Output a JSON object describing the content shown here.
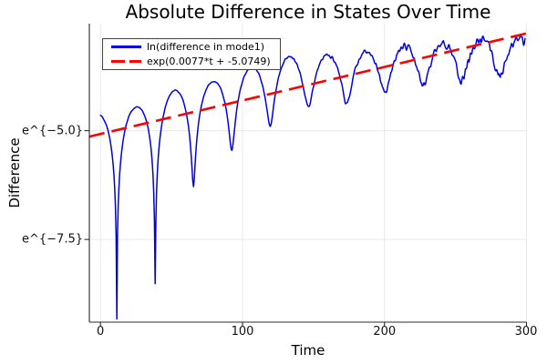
{
  "chart_data": {
    "type": "line",
    "title": "Absolute Difference in States Over Time",
    "xlabel": "Time",
    "ylabel": "Difference",
    "y_scale": "ln",
    "grid": true,
    "legend_position": "top-left",
    "xlim": [
      -7.85,
      300.0
    ],
    "ylim_ln": [
      -9.4,
      -2.54
    ],
    "xticks": {
      "values": [
        0,
        100,
        200,
        300
      ],
      "labels": [
        "0",
        "100",
        "200",
        "300"
      ]
    },
    "yticks": {
      "values_ln": [
        -5.0,
        -7.5
      ],
      "labels": [
        "e^{−5.0}",
        "e^{−7.5}"
      ]
    },
    "colors": {
      "grid": "#d9d9d9",
      "spine": "#2b2b2b",
      "tick_text": "#111111"
    },
    "series": [
      {
        "name": "difference",
        "label": "ln(difference in mode1)",
        "color": "#0000e8",
        "style": "solid",
        "width": 1.5,
        "model": {
          "t_range": [
            0,
            299
          ],
          "step": 0.5,
          "dip_first_t": 11.5,
          "dip_period": 27,
          "envelope_keypoints": [
            [
              0,
              -4.62
            ],
            [
              24.5,
              -4.47
            ],
            [
              52,
              -4.07
            ],
            [
              79,
              -3.89
            ],
            [
              106,
              -3.56
            ],
            [
              133,
              -3.33
            ],
            [
              160,
              -3.32
            ],
            [
              187,
              -3.25
            ],
            [
              214,
              -3.15
            ],
            [
              241,
              -3.08
            ],
            [
              268,
              -2.98
            ],
            [
              299,
              -2.95
            ]
          ],
          "dip_depth_keypoints": [
            [
              0,
              5.0
            ],
            [
              11.5,
              4.78
            ],
            [
              38.5,
              4.25
            ],
            [
              65.5,
              2.3
            ],
            [
              92.5,
              1.72
            ],
            [
              119.5,
              1.45
            ],
            [
              146.5,
              1.12
            ],
            [
              173.5,
              1.12
            ],
            [
              200.5,
              0.92
            ],
            [
              227.5,
              0.87
            ],
            [
              254.5,
              0.82
            ],
            [
              299,
              0.73
            ]
          ],
          "noise_amp_keypoints": [
            [
              0,
              0.012
            ],
            [
              100,
              0.016
            ],
            [
              150,
              0.045
            ],
            [
              200,
              0.09
            ],
            [
              250,
              0.14
            ],
            [
              299,
              0.19
            ]
          ],
          "key_dips_ln": [
            [
              11.5,
              -9.33
            ],
            [
              38.5,
              -8.44
            ],
            [
              65.5,
              -6.27
            ],
            [
              92.5,
              -5.41
            ],
            [
              119.5,
              -4.86
            ],
            [
              146.5,
              -4.44
            ],
            [
              173.5,
              -4.38
            ],
            [
              200.5,
              -4.1
            ],
            [
              227.5,
              -3.98
            ],
            [
              254.5,
              -3.85
            ],
            [
              281.5,
              -3.72
            ]
          ],
          "key_peaks_ln": [
            [
              24.5,
              -4.47
            ],
            [
              52,
              -4.07
            ],
            [
              79,
              -3.89
            ],
            [
              106,
              -3.56
            ],
            [
              133,
              -3.33
            ],
            [
              160,
              -3.32
            ],
            [
              187,
              -3.25
            ],
            [
              214,
              -3.15
            ],
            [
              241,
              -3.08
            ],
            [
              268,
              -2.98
            ],
            [
              295,
              -2.95
            ]
          ]
        }
      },
      {
        "name": "exp-fit",
        "label": "exp(0.0077*t + -5.0749)",
        "color": "#ff0000",
        "style": "dashed",
        "width": 2.6,
        "dash": [
          17,
          8
        ],
        "slope": 0.0077,
        "intercept": -5.0749,
        "t_range": [
          -7.85,
          300.0
        ]
      }
    ]
  }
}
